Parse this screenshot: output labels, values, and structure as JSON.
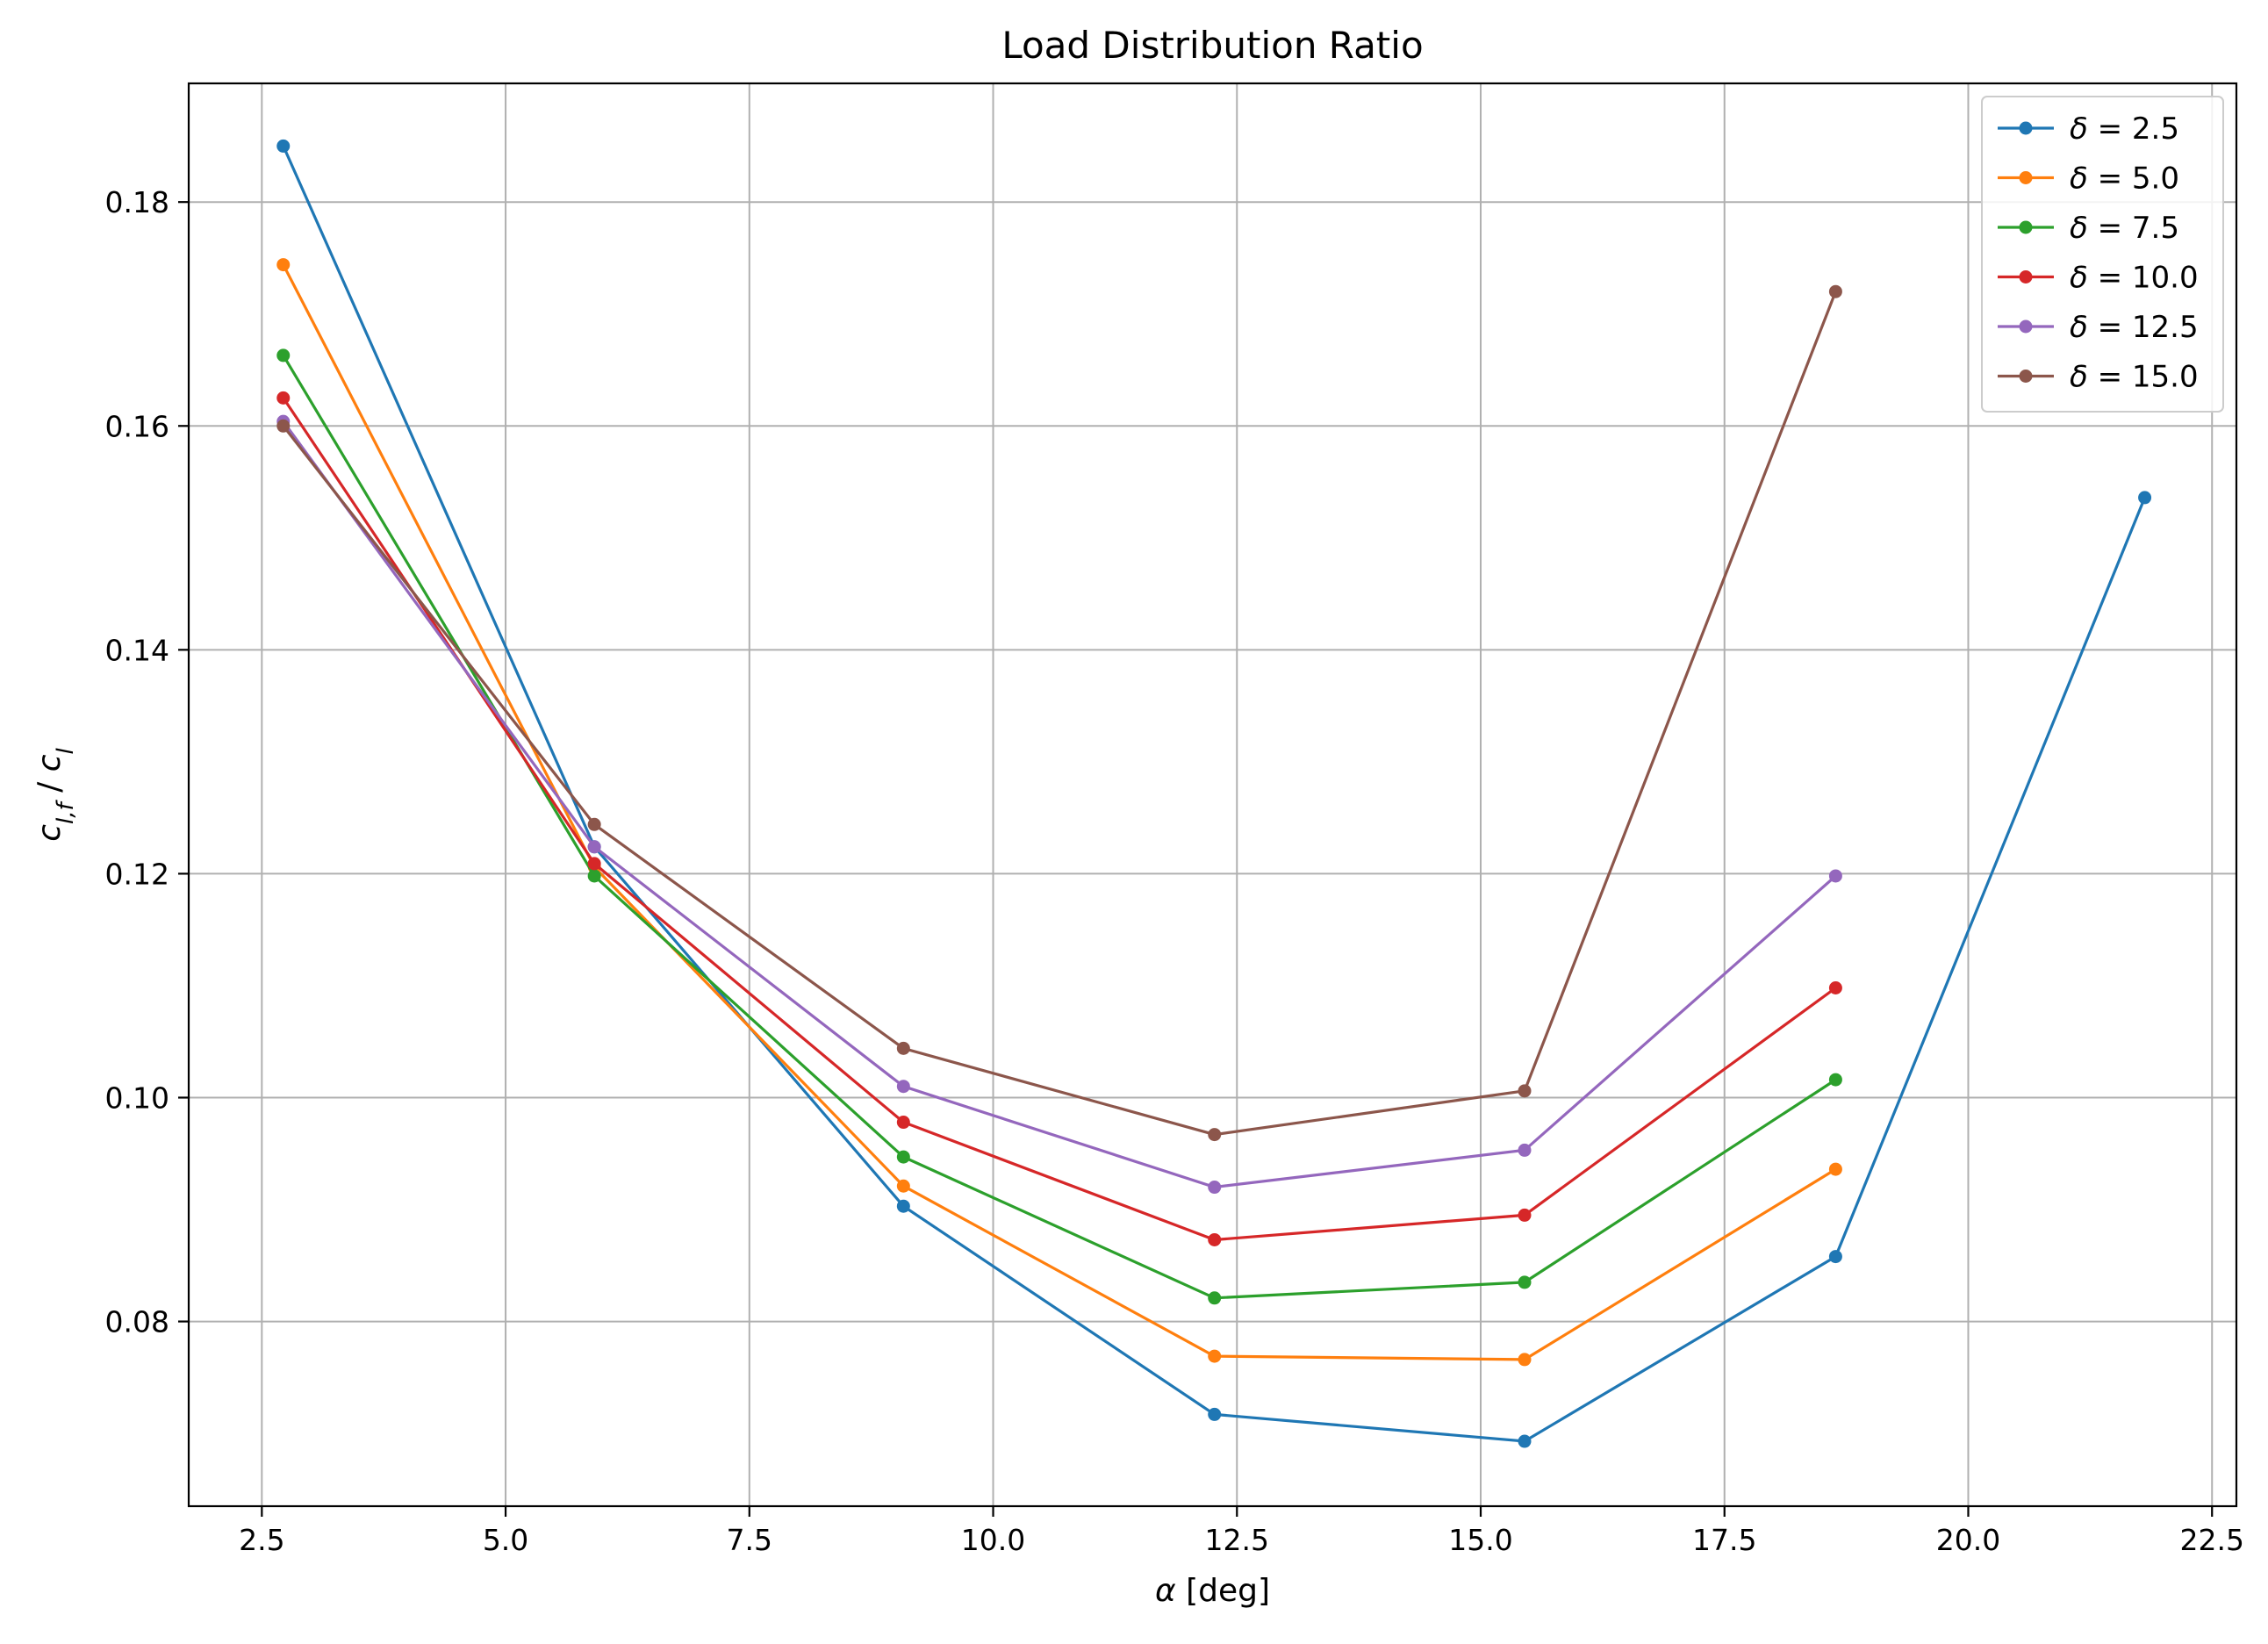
{
  "chart_data": {
    "type": "line",
    "title": "Load Distribution Ratio",
    "xlabel": "α [deg]",
    "ylabel": "c_{l,f} / c_l",
    "xlim": [
      1.75,
      22.75
    ],
    "ylim": [
      0.0635,
      0.1906
    ],
    "xticks": [
      2.5,
      5.0,
      7.5,
      10.0,
      12.5,
      15.0,
      17.5,
      20.0,
      22.5
    ],
    "xtick_labels": [
      "2.5",
      "5.0",
      "7.5",
      "10.0",
      "12.5",
      "15.0",
      "17.5",
      "20.0",
      "22.5"
    ],
    "yticks": [
      0.08,
      0.1,
      0.12,
      0.14,
      0.16,
      0.18
    ],
    "ytick_labels": [
      "0.08",
      "0.10",
      "0.12",
      "0.14",
      "0.16",
      "0.18"
    ],
    "grid": true,
    "legend_position": "top-right",
    "series": [
      {
        "name": "δ = 2.5",
        "color": "#1f77b4",
        "x": [
          2.72,
          5.91,
          9.08,
          12.27,
          15.45,
          18.64,
          21.81
        ],
        "y": [
          0.185,
          0.1224,
          0.0903,
          0.0717,
          0.0693,
          0.0858,
          0.1536
        ]
      },
      {
        "name": "δ = 5.0",
        "color": "#ff7f0e",
        "x": [
          2.72,
          5.91,
          9.08,
          12.27,
          15.45,
          18.64
        ],
        "y": [
          0.1744,
          0.1206,
          0.0921,
          0.0769,
          0.0766,
          0.0936
        ]
      },
      {
        "name": "δ = 7.5",
        "color": "#2ca02c",
        "x": [
          2.72,
          5.91,
          9.08,
          12.27,
          15.45,
          18.64
        ],
        "y": [
          0.1663,
          0.1198,
          0.0947,
          0.0821,
          0.0835,
          0.1016
        ]
      },
      {
        "name": "δ = 10.0",
        "color": "#d62728",
        "x": [
          2.72,
          5.91,
          9.08,
          12.27,
          15.45,
          18.64
        ],
        "y": [
          0.1625,
          0.1209,
          0.0978,
          0.0873,
          0.0895,
          0.1098
        ]
      },
      {
        "name": "δ = 12.5",
        "color": "#9467bd",
        "x": [
          2.72,
          5.91,
          9.08,
          12.27,
          15.45,
          18.64
        ],
        "y": [
          0.1604,
          0.1224,
          0.101,
          0.092,
          0.0953,
          0.1198
        ]
      },
      {
        "name": "δ = 15.0",
        "color": "#8c564b",
        "x": [
          2.72,
          5.91,
          9.08,
          12.27,
          15.45,
          18.64
        ],
        "y": [
          0.16,
          0.1244,
          0.1044,
          0.0967,
          0.1006,
          0.172
        ]
      }
    ]
  }
}
